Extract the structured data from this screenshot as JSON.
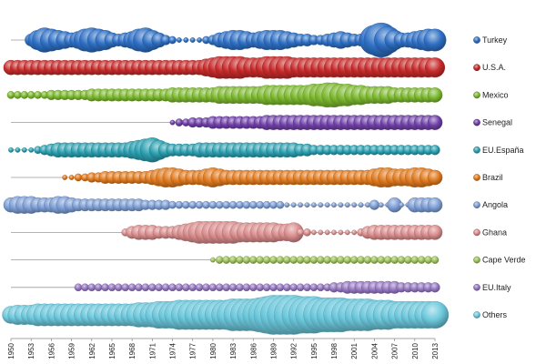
{
  "chart_data": {
    "type": "scatter",
    "subtype": "bubble-timeline",
    "title": "",
    "xlabel": "",
    "ylabel": "",
    "x_tick_labels": [
      "1950",
      "1953",
      "1956",
      "1959",
      "1962",
      "1965",
      "1968",
      "1971",
      "1974",
      "1977",
      "1980",
      "1983",
      "1986",
      "1989",
      "1992",
      "1995",
      "1998",
      "2001",
      "2004",
      "2007",
      "2010",
      "2013"
    ],
    "xlim": [
      1950,
      2013
    ],
    "legend_position": "right",
    "grid": false,
    "bubble_size_units": "relative",
    "series": [
      {
        "name": "Turkey",
        "color": "#2e6fc4",
        "x": [
          1950,
          1951,
          1952,
          1953,
          1954,
          1955,
          1956,
          1957,
          1958,
          1959,
          1960,
          1961,
          1962,
          1963,
          1964,
          1965,
          1966,
          1967,
          1968,
          1969,
          1970,
          1971,
          1972,
          1973,
          1974,
          1975,
          1976,
          1977,
          1978,
          1979,
          1980,
          1981,
          1982,
          1983,
          1984,
          1985,
          1986,
          1987,
          1988,
          1989,
          1990,
          1991,
          1992,
          1993,
          1994,
          1995,
          1996,
          1997,
          1998,
          1999,
          2000,
          2001,
          2002,
          2003,
          2004,
          2005,
          2006,
          2007,
          2008,
          2009,
          2010,
          2011,
          2012,
          2013
        ],
        "sizes": [
          0,
          0,
          0,
          5,
          8,
          10,
          9,
          8,
          7,
          6,
          7,
          9,
          10,
          9,
          8,
          6,
          5,
          6,
          7,
          9,
          10,
          8,
          6,
          4,
          3,
          2,
          2,
          2,
          2,
          3,
          4,
          6,
          7,
          8,
          8,
          7,
          6,
          7,
          8,
          8,
          8,
          7,
          6,
          5,
          5,
          4,
          4,
          5,
          6,
          7,
          6,
          5,
          5,
          7,
          12,
          14,
          11,
          8,
          6,
          6,
          7,
          8,
          9,
          9
        ]
      },
      {
        "name": "U.S.A.",
        "color": "#c62a2a",
        "x": [
          1950,
          1951,
          1952,
          1953,
          1954,
          1955,
          1956,
          1957,
          1958,
          1959,
          1960,
          1961,
          1962,
          1963,
          1964,
          1965,
          1966,
          1967,
          1968,
          1969,
          1970,
          1971,
          1972,
          1973,
          1974,
          1975,
          1976,
          1977,
          1978,
          1979,
          1980,
          1981,
          1982,
          1983,
          1984,
          1985,
          1986,
          1987,
          1988,
          1989,
          1990,
          1991,
          1992,
          1993,
          1994,
          1995,
          1996,
          1997,
          1998,
          1999,
          2000,
          2001,
          2002,
          2003,
          2004,
          2005,
          2006,
          2007,
          2008,
          2009,
          2010,
          2011,
          2012,
          2013
        ],
        "sizes": [
          6,
          6,
          6,
          6,
          6,
          6,
          6,
          6,
          6,
          6,
          6,
          6,
          6,
          6,
          6,
          6,
          6,
          6,
          6,
          6,
          6,
          6,
          6,
          6,
          6,
          6,
          6,
          6,
          6,
          7,
          8,
          9,
          9,
          9,
          9,
          8,
          8,
          8,
          9,
          9,
          9,
          9,
          8,
          8,
          8,
          8,
          8,
          8,
          8,
          8,
          8,
          8,
          8,
          8,
          8,
          8,
          8,
          8,
          8,
          8,
          8,
          8,
          8,
          8
        ]
      },
      {
        "name": "Mexico",
        "color": "#7cb82f",
        "x": [
          1950,
          1951,
          1952,
          1953,
          1954,
          1955,
          1956,
          1957,
          1958,
          1959,
          1960,
          1961,
          1962,
          1963,
          1964,
          1965,
          1966,
          1967,
          1968,
          1969,
          1970,
          1971,
          1972,
          1973,
          1974,
          1975,
          1976,
          1977,
          1978,
          1979,
          1980,
          1981,
          1982,
          1983,
          1984,
          1985,
          1986,
          1987,
          1988,
          1989,
          1990,
          1991,
          1992,
          1993,
          1994,
          1995,
          1996,
          1997,
          1998,
          1999,
          2000,
          2001,
          2002,
          2003,
          2004,
          2005,
          2006,
          2007,
          2008,
          2009,
          2010,
          2011,
          2012,
          2013
        ],
        "sizes": [
          3,
          3,
          3,
          3,
          3,
          3,
          4,
          4,
          4,
          4,
          4,
          4,
          5,
          5,
          5,
          5,
          5,
          5,
          5,
          5,
          5,
          5,
          5,
          5,
          6,
          6,
          6,
          6,
          6,
          6,
          6,
          7,
          7,
          7,
          7,
          7,
          7,
          7,
          8,
          8,
          8,
          8,
          8,
          8,
          8,
          9,
          9,
          10,
          10,
          9,
          9,
          8,
          8,
          7,
          7,
          7,
          7,
          6,
          6,
          6,
          6,
          6,
          6,
          6
        ]
      },
      {
        "name": "Senegal",
        "color": "#6f3fa8",
        "x": [
          1974,
          1975,
          1976,
          1977,
          1978,
          1979,
          1980,
          1981,
          1982,
          1983,
          1984,
          1985,
          1986,
          1987,
          1988,
          1989,
          1990,
          1991,
          1992,
          1993,
          1994,
          1995,
          1996,
          1997,
          1998,
          1999,
          2000,
          2001,
          2002,
          2003,
          2004,
          2005,
          2006,
          2007,
          2008,
          2009,
          2010,
          2011,
          2012,
          2013
        ],
        "sizes": [
          2,
          3,
          3,
          4,
          4,
          4,
          5,
          5,
          5,
          5,
          5,
          5,
          5,
          5,
          6,
          6,
          6,
          6,
          6,
          6,
          6,
          6,
          6,
          6,
          6,
          6,
          6,
          6,
          6,
          6,
          6,
          6,
          6,
          6,
          6,
          6,
          6,
          6,
          6,
          6
        ]
      },
      {
        "name": "EU.España",
        "color": "#2b9fb0",
        "x": [
          1950,
          1951,
          1952,
          1953,
          1954,
          1955,
          1956,
          1957,
          1958,
          1959,
          1960,
          1961,
          1962,
          1963,
          1964,
          1965,
          1966,
          1967,
          1968,
          1969,
          1970,
          1971,
          1972,
          1973,
          1974,
          1975,
          1976,
          1977,
          1978,
          1979,
          1980,
          1981,
          1982,
          1983,
          1984,
          1985,
          1986,
          1987,
          1988,
          1989,
          1990,
          1991,
          1992,
          1993,
          1994,
          1995,
          1996,
          1997,
          1998,
          1999,
          2000,
          2001,
          2002,
          2003,
          2004,
          2005,
          2006,
          2007,
          2008,
          2009,
          2010,
          2011,
          2012,
          2013
        ],
        "sizes": [
          2,
          2,
          2,
          2,
          3,
          4,
          5,
          6,
          6,
          6,
          6,
          6,
          6,
          6,
          6,
          6,
          6,
          6,
          7,
          8,
          9,
          10,
          8,
          6,
          5,
          5,
          5,
          5,
          6,
          6,
          6,
          6,
          6,
          6,
          6,
          6,
          6,
          6,
          6,
          6,
          6,
          6,
          6,
          5,
          5,
          4,
          4,
          4,
          4,
          4,
          4,
          4,
          4,
          4,
          4,
          4,
          4,
          4,
          4,
          4,
          4,
          4,
          4,
          4
        ]
      },
      {
        "name": "Brazil",
        "color": "#e07a1f",
        "x": [
          1958,
          1959,
          1960,
          1961,
          1962,
          1963,
          1964,
          1965,
          1966,
          1967,
          1968,
          1969,
          1970,
          1971,
          1972,
          1973,
          1974,
          1975,
          1976,
          1977,
          1978,
          1979,
          1980,
          1981,
          1982,
          1983,
          1984,
          1985,
          1986,
          1987,
          1988,
          1989,
          1990,
          1991,
          1992,
          1993,
          1994,
          1995,
          1996,
          1997,
          1998,
          1999,
          2000,
          2001,
          2002,
          2003,
          2004,
          2005,
          2006,
          2007,
          2008,
          2009,
          2010,
          2011,
          2012,
          2013
        ],
        "sizes": [
          2,
          2,
          3,
          3,
          4,
          4,
          5,
          5,
          5,
          5,
          5,
          5,
          5,
          6,
          7,
          8,
          8,
          7,
          6,
          6,
          6,
          7,
          8,
          7,
          6,
          6,
          6,
          6,
          6,
          6,
          6,
          6,
          6,
          6,
          6,
          6,
          6,
          6,
          6,
          6,
          6,
          6,
          6,
          6,
          6,
          6,
          7,
          8,
          8,
          7,
          7,
          7,
          8,
          8,
          7,
          6
        ]
      },
      {
        "name": "Angola",
        "color": "#7d9ed4",
        "x": [
          1950,
          1951,
          1952,
          1953,
          1954,
          1955,
          1956,
          1957,
          1958,
          1959,
          1960,
          1961,
          1962,
          1963,
          1964,
          1965,
          1966,
          1967,
          1968,
          1969,
          1970,
          1971,
          1972,
          1973,
          1974,
          1975,
          1976,
          1977,
          1978,
          1979,
          1980,
          1981,
          1982,
          1983,
          1984,
          1985,
          1986,
          1987,
          1988,
          1989,
          1990,
          1991,
          1992,
          1993,
          1994,
          1995,
          1996,
          1997,
          1998,
          1999,
          2000,
          2001,
          2002,
          2003,
          2004,
          2005,
          2006,
          2007,
          2008,
          2009,
          2010,
          2011,
          2012,
          2013
        ],
        "sizes": [
          6,
          7,
          7,
          7,
          6,
          6,
          6,
          7,
          7,
          6,
          5,
          5,
          5,
          5,
          5,
          5,
          5,
          5,
          5,
          5,
          4,
          4,
          4,
          4,
          3,
          3,
          3,
          3,
          3,
          3,
          3,
          3,
          3,
          3,
          3,
          3,
          3,
          3,
          3,
          3,
          3,
          2,
          2,
          2,
          2,
          2,
          2,
          2,
          2,
          2,
          2,
          2,
          2,
          2,
          4,
          2,
          2,
          6,
          2,
          2,
          6,
          6,
          6,
          6
        ]
      },
      {
        "name": "Ghana",
        "color": "#d98c8c",
        "x": [
          1967,
          1968,
          1969,
          1970,
          1971,
          1972,
          1973,
          1974,
          1975,
          1976,
          1977,
          1978,
          1979,
          1980,
          1981,
          1982,
          1983,
          1984,
          1985,
          1986,
          1987,
          1988,
          1989,
          1990,
          1991,
          1992,
          1993,
          1994,
          1995,
          1996,
          1997,
          1998,
          1999,
          2000,
          2001,
          2002,
          2003,
          2004,
          2005,
          2006,
          2007,
          2008,
          2009,
          2010,
          2011,
          2012,
          2013
        ],
        "sizes": [
          3,
          5,
          6,
          6,
          6,
          5,
          5,
          5,
          6,
          7,
          8,
          9,
          9,
          9,
          9,
          9,
          9,
          8,
          8,
          8,
          8,
          8,
          8,
          7,
          7,
          8,
          3,
          3,
          2,
          2,
          2,
          2,
          2,
          2,
          2,
          3,
          5,
          6,
          6,
          6,
          6,
          6,
          6,
          6,
          6,
          6,
          6
        ]
      },
      {
        "name": "Cape Verde",
        "color": "#9cc05a",
        "x": [
          1980,
          1981,
          1982,
          1983,
          1984,
          1985,
          1986,
          1987,
          1988,
          1989,
          1990,
          1991,
          1992,
          1993,
          1994,
          1995,
          1996,
          1997,
          1998,
          1999,
          2000,
          2001,
          2002,
          2003,
          2004,
          2005,
          2006,
          2007,
          2008,
          2009,
          2010,
          2011,
          2012,
          2013
        ],
        "sizes": [
          2,
          3,
          3,
          3,
          3,
          3,
          3,
          3,
          3,
          3,
          3,
          3,
          3,
          3,
          3,
          3,
          3,
          3,
          3,
          3,
          3,
          3,
          3,
          3,
          3,
          3,
          3,
          3,
          3,
          3,
          3,
          3,
          3,
          3
        ]
      },
      {
        "name": "EU.Italy",
        "color": "#9577c0",
        "x": [
          1960,
          1961,
          1962,
          1963,
          1964,
          1965,
          1966,
          1967,
          1968,
          1969,
          1970,
          1971,
          1972,
          1973,
          1974,
          1975,
          1976,
          1977,
          1978,
          1979,
          1980,
          1981,
          1982,
          1983,
          1984,
          1985,
          1986,
          1987,
          1988,
          1989,
          1990,
          1991,
          1992,
          1993,
          1994,
          1995,
          1996,
          1997,
          1998,
          1999,
          2000,
          2001,
          2002,
          2003,
          2004,
          2005,
          2006,
          2007,
          2008,
          2009,
          2010,
          2011,
          2012,
          2013
        ],
        "sizes": [
          3,
          3,
          3,
          3,
          3,
          3,
          3,
          3,
          3,
          3,
          3,
          3,
          3,
          3,
          3,
          3,
          3,
          3,
          3,
          3,
          3,
          3,
          3,
          3,
          3,
          3,
          3,
          3,
          3,
          3,
          3,
          3,
          3,
          3,
          3,
          3,
          3,
          3,
          4,
          4,
          5,
          5,
          5,
          5,
          5,
          5,
          5,
          5,
          4,
          4,
          4,
          4,
          4,
          4
        ]
      },
      {
        "name": "Others",
        "color": "#6cc8dc",
        "x": [
          1950,
          1951,
          1952,
          1953,
          1954,
          1955,
          1956,
          1957,
          1958,
          1959,
          1960,
          1961,
          1962,
          1963,
          1964,
          1965,
          1966,
          1967,
          1968,
          1969,
          1970,
          1971,
          1972,
          1973,
          1974,
          1975,
          1976,
          1977,
          1978,
          1979,
          1980,
          1981,
          1982,
          1983,
          1984,
          1985,
          1986,
          1987,
          1988,
          1989,
          1990,
          1991,
          1992,
          1993,
          1994,
          1995,
          1996,
          1997,
          1998,
          1999,
          2000,
          2001,
          2002,
          2003,
          2004,
          2005,
          2006,
          2007,
          2008,
          2009,
          2010,
          2011,
          2012,
          2013
        ],
        "sizes": [
          7,
          8,
          8,
          8,
          9,
          9,
          9,
          9,
          9,
          9,
          9,
          9,
          9,
          9,
          9,
          9,
          9,
          9,
          9,
          10,
          10,
          10,
          11,
          11,
          11,
          12,
          12,
          12,
          12,
          12,
          12,
          12,
          12,
          13,
          13,
          13,
          13,
          14,
          15,
          16,
          16,
          16,
          16,
          15,
          15,
          15,
          14,
          14,
          14,
          14,
          13,
          13,
          13,
          13,
          12,
          12,
          12,
          11,
          11,
          11,
          11,
          11,
          11,
          11
        ]
      }
    ]
  }
}
